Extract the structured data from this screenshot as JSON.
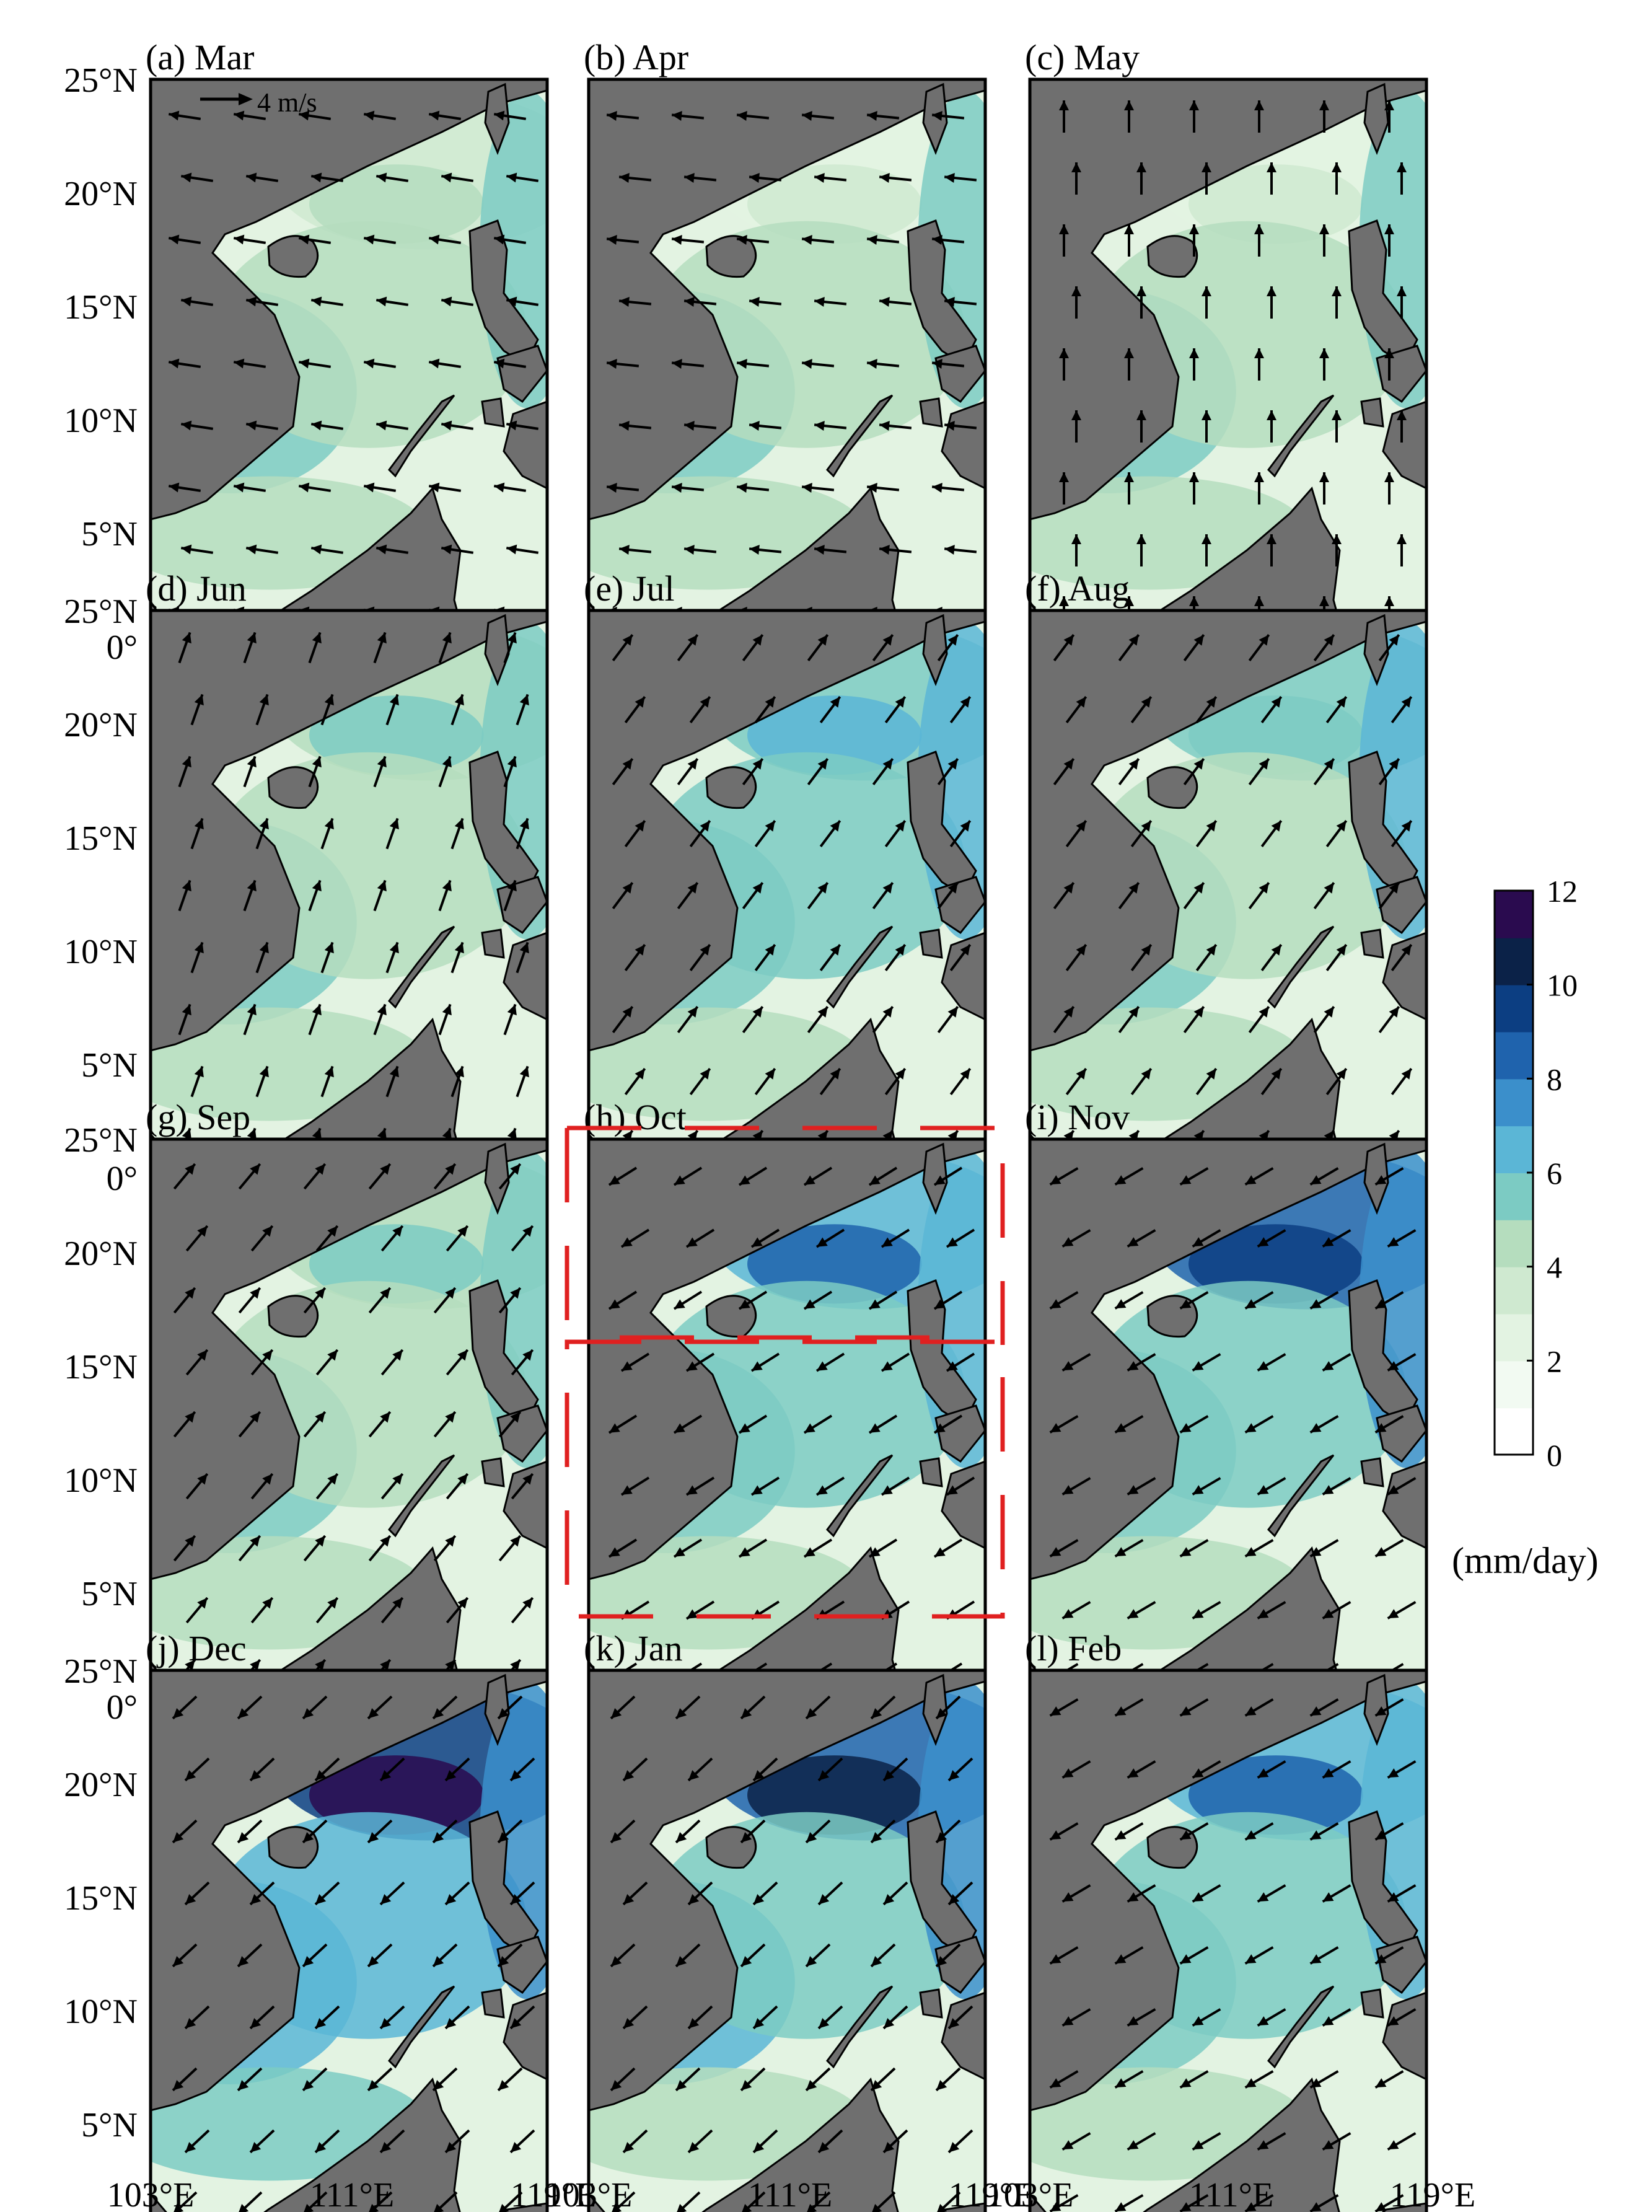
{
  "figure": {
    "panels": [
      {
        "label": "(a) Mar",
        "month": "Mar",
        "intensity": 0.45,
        "wind": [
          -1,
          0.15
        ]
      },
      {
        "label": "(b) Apr",
        "month": "Apr",
        "intensity": 0.3,
        "wind": [
          -1,
          0.1
        ]
      },
      {
        "label": "(c) May",
        "month": "May",
        "intensity": 0.3,
        "wind": [
          0,
          1
        ]
      },
      {
        "label": "(d) Jun",
        "month": "Jun",
        "intensity": 0.55,
        "wind": [
          0.35,
          1
        ]
      },
      {
        "label": "(e) Jul",
        "month": "Jul",
        "intensity": 0.65,
        "wind": [
          0.6,
          0.8
        ]
      },
      {
        "label": "(f) Aug",
        "month": "Aug",
        "intensity": 0.6,
        "wind": [
          0.6,
          0.8
        ]
      },
      {
        "label": "(g) Sep",
        "month": "Sep",
        "intensity": 0.5,
        "wind": [
          0.5,
          0.6
        ]
      },
      {
        "label": "(h) Oct",
        "month": "Oct",
        "intensity": 0.85,
        "wind": [
          -0.8,
          -0.5
        ]
      },
      {
        "label": "(i) Nov",
        "month": "Nov",
        "intensity": 1.0,
        "wind": [
          -0.85,
          -0.5
        ]
      },
      {
        "label": "(j) Dec",
        "month": "Dec",
        "intensity": 1.25,
        "wind": [
          -0.75,
          -0.7
        ]
      },
      {
        "label": "(k) Jan",
        "month": "Jan",
        "intensity": 1.1,
        "wind": [
          -0.75,
          -0.7
        ]
      },
      {
        "label": "(l) Feb",
        "month": "Feb",
        "intensity": 0.85,
        "wind": [
          -0.85,
          -0.5
        ]
      }
    ],
    "y_tick_labels": [
      "25°N",
      "20°N",
      "15°N",
      "10°N",
      "5°N",
      "0°"
    ],
    "x_tick_labels": [
      "103°E",
      "111°E",
      "119°E"
    ],
    "reference_vector_label": "4 m/s",
    "colorbar": {
      "tick_labels": [
        "12",
        "10",
        "8",
        "6",
        "4",
        "2",
        "0"
      ],
      "unit_label": "(mm/day)",
      "colors": [
        "#ffffff",
        "#f2faf2",
        "#e3f3e2",
        "#cfe9d0",
        "#b5ddbe",
        "#7ccbc3",
        "#5bb6d6",
        "#3b8fcb",
        "#1f63ad",
        "#0c3e82",
        "#0b2248",
        "#2a0b4f"
      ]
    },
    "colors": {
      "land": "#6f6f6f",
      "highlight_box": "#e02020",
      "arrow": "#000000"
    }
  }
}
